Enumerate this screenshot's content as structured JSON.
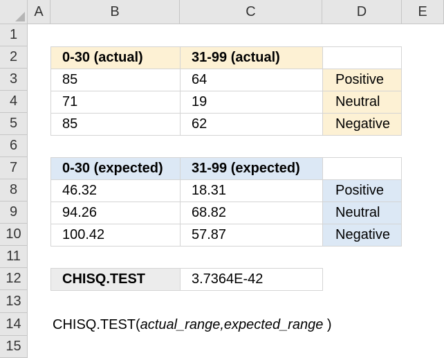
{
  "columns": [
    "A",
    "B",
    "C",
    "D",
    "E"
  ],
  "rows": [
    "1",
    "2",
    "3",
    "4",
    "5",
    "6",
    "7",
    "8",
    "9",
    "10",
    "11",
    "12",
    "13",
    "14",
    "15"
  ],
  "actual_table": {
    "headers": [
      "0-30 (actual)",
      "31-99 (actual)"
    ],
    "rows": [
      {
        "b": "85",
        "c": "64",
        "label": "Positive"
      },
      {
        "b": "71",
        "c": "19",
        "label": "Neutral"
      },
      {
        "b": "85",
        "c": "62",
        "label": "Negative"
      }
    ]
  },
  "expected_table": {
    "headers": [
      "0-30 (expected)",
      "31-99 (expected)"
    ],
    "rows": [
      {
        "b": "46.32",
        "c": "18.31",
        "label": "Positive"
      },
      {
        "b": "94.26",
        "c": "68.82",
        "label": "Neutral"
      },
      {
        "b": "100.42",
        "c": "57.87",
        "label": "Negative"
      }
    ]
  },
  "result": {
    "label": "CHISQ.TEST",
    "value": "3.7364E-42"
  },
  "syntax": {
    "function": "CHISQ.TEST(",
    "arg1": "actual_range",
    "sep": ",",
    "arg2": "expected_range",
    "close": " )"
  },
  "colors": {
    "actual_fill": "#fdf1d4",
    "expected_fill": "#dce8f5",
    "result_fill": "#ececec",
    "header_fill": "#e6e6e6"
  }
}
